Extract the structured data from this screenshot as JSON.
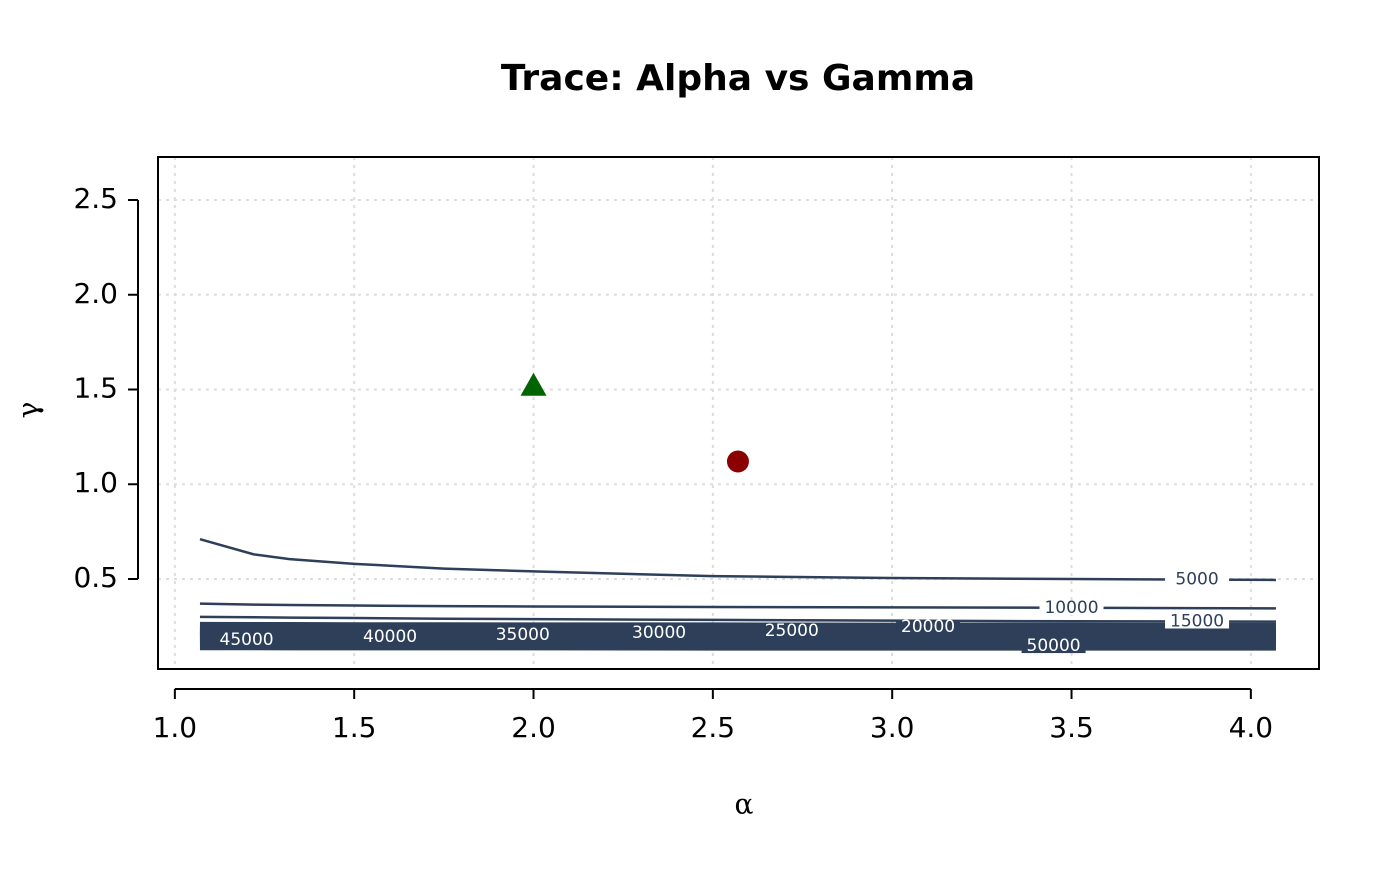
{
  "chart_data": {
    "type": "contour",
    "title": "Trace: Alpha vs Gamma",
    "x_label": "α",
    "y_label": "γ",
    "xlim": [
      0.953,
      4.19
    ],
    "ylim": [
      0.025,
      2.727
    ],
    "xticks": [
      {
        "value": 1,
        "label": "1.0"
      },
      1.5,
      {
        "value": 2,
        "label": "2.0"
      },
      2.5,
      {
        "value": 3,
        "label": "3.0"
      },
      3.5,
      {
        "value": 4,
        "label": "4.0"
      }
    ],
    "yticks": [
      0.5,
      {
        "value": 1,
        "label": "1.0"
      },
      1.5,
      {
        "value": 2,
        "label": "2.0"
      },
      2.5
    ],
    "grid": true,
    "color": "#2e3f59",
    "x": [
      1.07,
      1.22,
      1.32,
      1.5,
      1.75,
      2.0,
      2.5,
      3.0,
      3.5,
      4.07
    ],
    "contours": [
      {
        "level": 5000,
        "values": [
          0.71,
          0.63,
          0.605,
          0.58,
          0.555,
          0.54,
          0.515,
          0.505,
          0.5,
          0.495
        ]
      },
      {
        "level": 10000,
        "values": [
          0.37,
          0.365,
          0.363,
          0.36,
          0.357,
          0.355,
          0.352,
          0.35,
          0.348,
          0.345
        ]
      },
      {
        "level": 15000,
        "values": [
          0.3,
          0.298,
          0.296,
          0.294,
          0.29,
          0.288,
          0.284,
          0.28,
          0.277,
          0.275
        ]
      },
      {
        "level": 20000,
        "values": [
          0.25,
          0.249,
          0.249,
          0.248,
          0.248,
          0.247,
          0.247,
          0.246,
          0.246,
          0.245
        ]
      },
      {
        "level": 25000,
        "values": [
          0.228,
          0.228,
          0.227,
          0.227,
          0.227,
          0.226,
          0.226,
          0.226,
          0.225,
          0.225
        ]
      },
      {
        "level": 30000,
        "values": [
          0.216,
          0.216,
          0.216,
          0.215,
          0.215,
          0.215,
          0.215,
          0.214,
          0.214,
          0.214
        ]
      },
      {
        "level": 35000,
        "values": [
          0.205,
          0.205,
          0.204,
          0.204,
          0.204,
          0.204,
          0.204,
          0.203,
          0.203,
          0.203
        ]
      },
      {
        "level": 40000,
        "values": [
          0.194,
          0.194,
          0.194,
          0.194,
          0.194,
          0.193,
          0.193,
          0.193,
          0.193,
          0.192
        ]
      },
      {
        "level": 45000,
        "values": [
          0.178,
          0.178,
          0.178,
          0.178,
          0.177,
          0.177,
          0.177,
          0.177,
          0.176,
          0.176
        ]
      },
      {
        "level": 50000,
        "values": [
          0.148,
          0.148,
          0.147,
          0.147,
          0.147,
          0.147,
          0.146,
          0.146,
          0.146,
          0.146
        ]
      }
    ],
    "points": [
      {
        "x": 2.0,
        "y": 1.52,
        "shape": "triangle",
        "color": "#006400"
      },
      {
        "x": 2.57,
        "y": 1.12,
        "shape": "circle",
        "color": "#8b0000"
      }
    ]
  }
}
